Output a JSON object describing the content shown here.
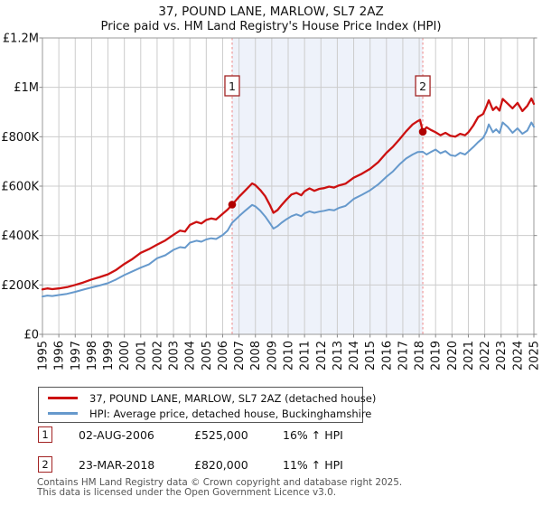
{
  "title": "37, POUND LANE, MARLOW, SL7 2AZ",
  "subtitle": "Price paid vs. HM Land Registry's House Price Index (HPI)",
  "colors": {
    "property_line": "#cc1111",
    "hpi_line": "#6699cc",
    "sale_dot": "#b00000",
    "dashed_line": "#ee8888",
    "shade": "#eef2fa",
    "grid": "#cccccc",
    "plot_border": "#999999",
    "marker_box_border": "#a22323",
    "footer_text": "#555555"
  },
  "legend": {
    "items": [
      {
        "label": "37, POUND LANE, MARLOW, SL7 2AZ (detached house)",
        "color": "#cc1111"
      },
      {
        "label": "HPI: Average price, detached house, Buckinghamshire",
        "color": "#6699cc"
      }
    ]
  },
  "sales": [
    {
      "num": "1",
      "date": "02-AUG-2006",
      "price": "£525,000",
      "vs_hpi": "16% ↑ HPI"
    },
    {
      "num": "2",
      "date": "23-MAR-2018",
      "price": "£820,000",
      "vs_hpi": "11% ↑ HPI"
    }
  ],
  "footer": {
    "line1": "Contains HM Land Registry data © Crown copyright and database right 2025.",
    "line2": "This data is licensed under the Open Government Licence v3.0."
  },
  "chart_data": {
    "type": "line",
    "title": "37, POUND LANE, MARLOW, SL7 2AZ",
    "subtitle": "Price paid vs. HM Land Registry's House Price Index (HPI)",
    "xlabel": "",
    "ylabel": "",
    "xlim": [
      1995,
      2025
    ],
    "ylim_gbp": [
      0,
      1200000
    ],
    "grid": true,
    "values_unit": "GBP_thousands",
    "x_ticks": [
      1995,
      1996,
      1997,
      1998,
      1999,
      2000,
      2001,
      2002,
      2003,
      2004,
      2005,
      2006,
      2007,
      2008,
      2009,
      2010,
      2011,
      2012,
      2013,
      2014,
      2015,
      2016,
      2017,
      2018,
      2019,
      2020,
      2021,
      2022,
      2023,
      2024,
      2025
    ],
    "y_ticks": [
      {
        "label": "£0",
        "value_k": 0
      },
      {
        "label": "£200K",
        "value_k": 200
      },
      {
        "label": "£400K",
        "value_k": 400
      },
      {
        "label": "£600K",
        "value_k": 600
      },
      {
        "label": "£800K",
        "value_k": 800
      },
      {
        "label": "£1M",
        "value_k": 1000
      },
      {
        "label": "£1.2M",
        "value_k": 1200
      }
    ],
    "shaded_region": {
      "from_year": 2006.58,
      "to_year": 2018.22
    },
    "sale_markers": [
      {
        "num": "1",
        "year": 2006.58,
        "value_k": 525
      },
      {
        "num": "2",
        "year": 2018.22,
        "value_k": 820
      }
    ],
    "series": [
      {
        "name": "37, POUND LANE, MARLOW, SL7 2AZ (detached house)",
        "color": "#cc1111",
        "points": [
          [
            1995.0,
            182
          ],
          [
            1995.3,
            186
          ],
          [
            1995.6,
            183
          ],
          [
            1996.0,
            186
          ],
          [
            1996.5,
            191
          ],
          [
            1997.0,
            200
          ],
          [
            1997.5,
            210
          ],
          [
            1998.0,
            222
          ],
          [
            1998.5,
            232
          ],
          [
            1999.0,
            243
          ],
          [
            1999.5,
            261
          ],
          [
            2000.0,
            285
          ],
          [
            2000.5,
            305
          ],
          [
            2001.0,
            330
          ],
          [
            2001.5,
            345
          ],
          [
            2002.0,
            363
          ],
          [
            2002.5,
            380
          ],
          [
            2003.0,
            403
          ],
          [
            2003.4,
            420
          ],
          [
            2003.7,
            416
          ],
          [
            2004.0,
            443
          ],
          [
            2004.4,
            455
          ],
          [
            2004.7,
            449
          ],
          [
            2005.0,
            463
          ],
          [
            2005.3,
            469
          ],
          [
            2005.6,
            465
          ],
          [
            2006.0,
            488
          ],
          [
            2006.3,
            505
          ],
          [
            2006.58,
            525
          ],
          [
            2007.0,
            557
          ],
          [
            2007.4,
            584
          ],
          [
            2007.8,
            611
          ],
          [
            2008.0,
            604
          ],
          [
            2008.3,
            584
          ],
          [
            2008.6,
            559
          ],
          [
            2008.9,
            521
          ],
          [
            2009.1,
            492
          ],
          [
            2009.35,
            503
          ],
          [
            2009.6,
            523
          ],
          [
            2009.9,
            546
          ],
          [
            2010.2,
            566
          ],
          [
            2010.5,
            573
          ],
          [
            2010.8,
            563
          ],
          [
            2011.0,
            579
          ],
          [
            2011.3,
            591
          ],
          [
            2011.6,
            581
          ],
          [
            2011.9,
            589
          ],
          [
            2012.2,
            592
          ],
          [
            2012.5,
            598
          ],
          [
            2012.8,
            594
          ],
          [
            2013.1,
            603
          ],
          [
            2013.5,
            610
          ],
          [
            2014.0,
            634
          ],
          [
            2014.5,
            650
          ],
          [
            2015.0,
            670
          ],
          [
            2015.5,
            697
          ],
          [
            2016.0,
            735
          ],
          [
            2016.4,
            760
          ],
          [
            2016.8,
            790
          ],
          [
            2017.2,
            822
          ],
          [
            2017.6,
            850
          ],
          [
            2017.9,
            863
          ],
          [
            2018.05,
            868
          ],
          [
            2018.22,
            820
          ],
          [
            2018.45,
            838
          ],
          [
            2018.7,
            828
          ],
          [
            2019.0,
            818
          ],
          [
            2019.3,
            806
          ],
          [
            2019.6,
            816
          ],
          [
            2019.9,
            804
          ],
          [
            2020.2,
            800
          ],
          [
            2020.5,
            812
          ],
          [
            2020.8,
            806
          ],
          [
            2021.0,
            818
          ],
          [
            2021.3,
            845
          ],
          [
            2021.6,
            880
          ],
          [
            2021.9,
            892
          ],
          [
            2022.1,
            922
          ],
          [
            2022.25,
            948
          ],
          [
            2022.5,
            908
          ],
          [
            2022.7,
            921
          ],
          [
            2022.9,
            906
          ],
          [
            2023.1,
            953
          ],
          [
            2023.4,
            934
          ],
          [
            2023.7,
            915
          ],
          [
            2024.0,
            937
          ],
          [
            2024.3,
            904
          ],
          [
            2024.6,
            925
          ],
          [
            2024.85,
            955
          ],
          [
            2025.0,
            933
          ]
        ]
      },
      {
        "name": "HPI: Average price, detached house, Buckinghamshire",
        "color": "#6699cc",
        "points": [
          [
            1995.0,
            153
          ],
          [
            1995.3,
            157
          ],
          [
            1995.6,
            155
          ],
          [
            1996.0,
            159
          ],
          [
            1996.5,
            164
          ],
          [
            1997.0,
            172
          ],
          [
            1997.5,
            181
          ],
          [
            1998.0,
            190
          ],
          [
            1998.5,
            198
          ],
          [
            1999.0,
            207
          ],
          [
            1999.5,
            222
          ],
          [
            2000.0,
            240
          ],
          [
            2000.5,
            255
          ],
          [
            2001.0,
            270
          ],
          [
            2001.5,
            283
          ],
          [
            2002.0,
            308
          ],
          [
            2002.5,
            320
          ],
          [
            2003.0,
            342
          ],
          [
            2003.4,
            353
          ],
          [
            2003.7,
            350
          ],
          [
            2004.0,
            371
          ],
          [
            2004.4,
            379
          ],
          [
            2004.7,
            375
          ],
          [
            2005.0,
            384
          ],
          [
            2005.3,
            389
          ],
          [
            2005.6,
            386
          ],
          [
            2006.0,
            402
          ],
          [
            2006.3,
            420
          ],
          [
            2006.58,
            452
          ],
          [
            2007.0,
            478
          ],
          [
            2007.4,
            502
          ],
          [
            2007.8,
            524
          ],
          [
            2008.0,
            518
          ],
          [
            2008.3,
            500
          ],
          [
            2008.6,
            477
          ],
          [
            2008.9,
            448
          ],
          [
            2009.1,
            428
          ],
          [
            2009.35,
            438
          ],
          [
            2009.6,
            452
          ],
          [
            2009.9,
            466
          ],
          [
            2010.2,
            478
          ],
          [
            2010.5,
            486
          ],
          [
            2010.8,
            478
          ],
          [
            2011.0,
            490
          ],
          [
            2011.3,
            498
          ],
          [
            2011.6,
            492
          ],
          [
            2011.9,
            497
          ],
          [
            2012.2,
            500
          ],
          [
            2012.5,
            505
          ],
          [
            2012.8,
            502
          ],
          [
            2013.1,
            512
          ],
          [
            2013.5,
            520
          ],
          [
            2014.0,
            548
          ],
          [
            2014.5,
            565
          ],
          [
            2015.0,
            583
          ],
          [
            2015.5,
            607
          ],
          [
            2016.0,
            638
          ],
          [
            2016.4,
            660
          ],
          [
            2016.8,
            688
          ],
          [
            2017.2,
            712
          ],
          [
            2017.6,
            728
          ],
          [
            2017.9,
            738
          ],
          [
            2018.22,
            739
          ],
          [
            2018.45,
            728
          ],
          [
            2018.7,
            738
          ],
          [
            2019.0,
            748
          ],
          [
            2019.3,
            733
          ],
          [
            2019.6,
            742
          ],
          [
            2019.9,
            726
          ],
          [
            2020.2,
            722
          ],
          [
            2020.5,
            735
          ],
          [
            2020.8,
            728
          ],
          [
            2021.0,
            740
          ],
          [
            2021.3,
            758
          ],
          [
            2021.6,
            778
          ],
          [
            2021.9,
            795
          ],
          [
            2022.1,
            820
          ],
          [
            2022.25,
            850
          ],
          [
            2022.5,
            818
          ],
          [
            2022.7,
            830
          ],
          [
            2022.9,
            815
          ],
          [
            2023.1,
            858
          ],
          [
            2023.4,
            840
          ],
          [
            2023.7,
            816
          ],
          [
            2024.0,
            834
          ],
          [
            2024.3,
            812
          ],
          [
            2024.6,
            825
          ],
          [
            2024.85,
            858
          ],
          [
            2025.0,
            840
          ]
        ]
      }
    ]
  }
}
